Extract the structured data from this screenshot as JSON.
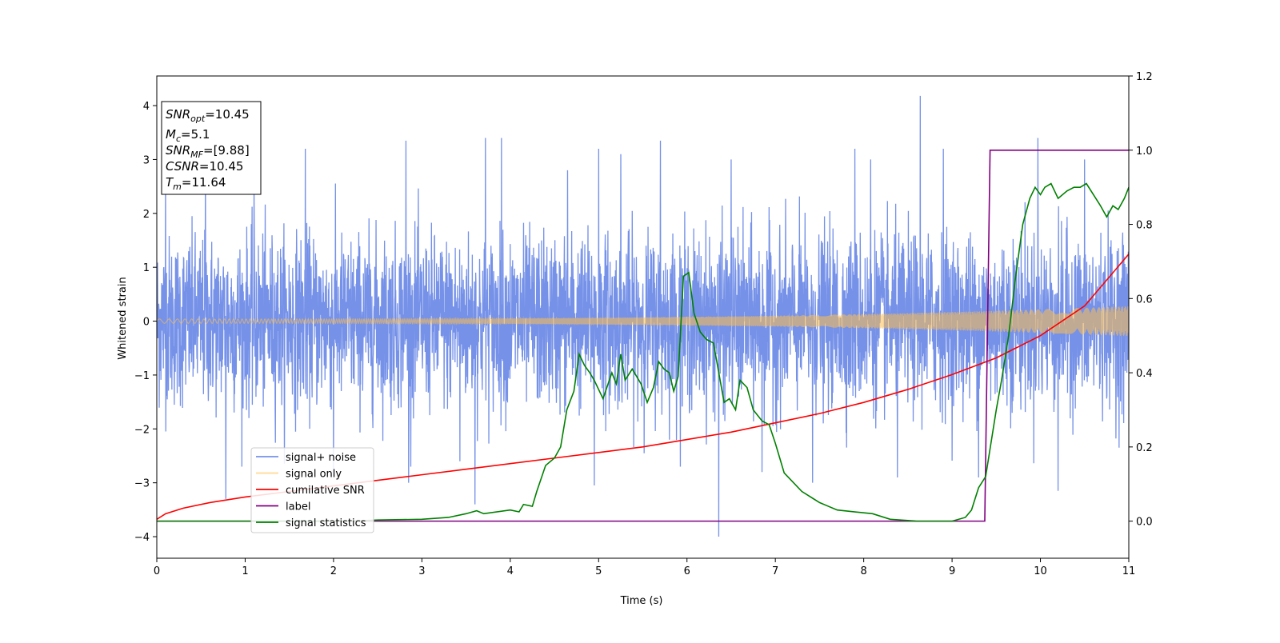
{
  "chart_data": {
    "type": "line",
    "xlabel": "Time (s)",
    "ylabel": "Whitened strain",
    "xlim": [
      0,
      11
    ],
    "ylim_left": [
      -4.4,
      4.55
    ],
    "ylim_right": [
      -0.1,
      1.2
    ],
    "x_ticks": [
      0,
      1,
      2,
      3,
      4,
      5,
      6,
      7,
      8,
      9,
      10,
      11
    ],
    "x_tick_labels": [
      "0",
      "1",
      "2",
      "3",
      "4",
      "5",
      "6",
      "7",
      "8",
      "9",
      "10",
      "11"
    ],
    "y_left_ticks": [
      -4,
      -3,
      -2,
      -1,
      0,
      1,
      2,
      3,
      4
    ],
    "y_left_tick_labels": [
      "−4",
      "−3",
      "−2",
      "−1",
      "0",
      "1",
      "2",
      "3",
      "4"
    ],
    "y_right_ticks": [
      0.0,
      0.2,
      0.4,
      0.6,
      0.8,
      1.0,
      1.2
    ],
    "y_right_tick_labels": [
      "0.0",
      "0.2",
      "0.4",
      "0.6",
      "0.8",
      "1.0",
      "1.2"
    ],
    "grid": false,
    "legend_position": "lower-left",
    "annotation": {
      "lines": [
        {
          "sym": "SNR",
          "sub": "opt",
          "val": "=10.45"
        },
        {
          "sym": "M",
          "sub": "c",
          "val": "=5.1"
        },
        {
          "sym": "SNR",
          "sub": "MF",
          "val": "=[9.88]"
        },
        {
          "sym": "CSNR",
          "sub": "",
          "val": "=10.45"
        },
        {
          "sym": "T",
          "sub": "m",
          "val": "=11.64"
        }
      ]
    },
    "series": [
      {
        "name": "signal+ noise",
        "color": "#7591e8",
        "axis": "left",
        "envelope_typical": 1.5,
        "spikes": [
          {
            "x": 0.1,
            "y": 3.05
          },
          {
            "x": 0.55,
            "y": 3.0
          },
          {
            "x": 0.78,
            "y": -3.3
          },
          {
            "x": 1.1,
            "y": 2.6
          },
          {
            "x": 1.68,
            "y": 3.2
          },
          {
            "x": 2.0,
            "y": -2.9
          },
          {
            "x": 2.82,
            "y": 3.35
          },
          {
            "x": 2.85,
            "y": -3.0
          },
          {
            "x": 3.43,
            "y": -2.6
          },
          {
            "x": 3.6,
            "y": -3.4
          },
          {
            "x": 3.72,
            "y": 3.4
          },
          {
            "x": 3.9,
            "y": 3.4
          },
          {
            "x": 4.65,
            "y": 2.8
          },
          {
            "x": 4.95,
            "y": -3.05
          },
          {
            "x": 5.0,
            "y": 3.2
          },
          {
            "x": 5.25,
            "y": 3.1
          },
          {
            "x": 5.7,
            "y": 3.35
          },
          {
            "x": 6.36,
            "y": -4.0
          },
          {
            "x": 6.5,
            "y": 3.0
          },
          {
            "x": 6.85,
            "y": -2.8
          },
          {
            "x": 7.42,
            "y": -3.0
          },
          {
            "x": 7.9,
            "y": 3.2
          },
          {
            "x": 8.08,
            "y": 3.0
          },
          {
            "x": 8.38,
            "y": -2.9
          },
          {
            "x": 8.64,
            "y": 4.18
          },
          {
            "x": 8.9,
            "y": 3.2
          },
          {
            "x": 9.3,
            "y": -2.9
          },
          {
            "x": 9.97,
            "y": 3.4
          },
          {
            "x": 10.2,
            "y": -3.15
          },
          {
            "x": 10.5,
            "y": 3.0
          }
        ]
      },
      {
        "name": "signal only",
        "color": "#ffc04d",
        "axis": "left",
        "amplitude_start": 0.04,
        "amplitude_end": 0.28
      },
      {
        "name": "cumilative SNR",
        "color": "#ff0000",
        "axis": "right",
        "points": [
          [
            0,
            0.005
          ],
          [
            0.1,
            0.02
          ],
          [
            0.3,
            0.035
          ],
          [
            0.6,
            0.05
          ],
          [
            1,
            0.065
          ],
          [
            1.5,
            0.08
          ],
          [
            2,
            0.095
          ],
          [
            2.5,
            0.11
          ],
          [
            3,
            0.125
          ],
          [
            3.5,
            0.14
          ],
          [
            4,
            0.155
          ],
          [
            4.5,
            0.17
          ],
          [
            5,
            0.185
          ],
          [
            5.5,
            0.2
          ],
          [
            6,
            0.22
          ],
          [
            6.5,
            0.24
          ],
          [
            7,
            0.265
          ],
          [
            7.5,
            0.29
          ],
          [
            8,
            0.32
          ],
          [
            8.5,
            0.355
          ],
          [
            9,
            0.395
          ],
          [
            9.5,
            0.44
          ],
          [
            10,
            0.5
          ],
          [
            10.5,
            0.58
          ],
          [
            11,
            0.72
          ]
        ]
      },
      {
        "name": "label",
        "color": "#800080",
        "axis": "right",
        "points": [
          [
            0,
            0.0
          ],
          [
            9.37,
            0.0
          ],
          [
            9.43,
            1.0
          ],
          [
            11,
            1.0
          ]
        ]
      },
      {
        "name": "signal statistics",
        "color": "#008000",
        "axis": "right",
        "points": [
          [
            0,
            0.0
          ],
          [
            2.2,
            0.0
          ],
          [
            2.5,
            0.003
          ],
          [
            3.0,
            0.005
          ],
          [
            3.3,
            0.01
          ],
          [
            3.5,
            0.02
          ],
          [
            3.62,
            0.028
          ],
          [
            3.7,
            0.02
          ],
          [
            4.0,
            0.03
          ],
          [
            4.1,
            0.025
          ],
          [
            4.15,
            0.045
          ],
          [
            4.25,
            0.04
          ],
          [
            4.3,
            0.08
          ],
          [
            4.4,
            0.15
          ],
          [
            4.5,
            0.17
          ],
          [
            4.57,
            0.2
          ],
          [
            4.64,
            0.3
          ],
          [
            4.72,
            0.35
          ],
          [
            4.78,
            0.45
          ],
          [
            4.84,
            0.42
          ],
          [
            4.9,
            0.4
          ],
          [
            4.95,
            0.38
          ],
          [
            5.05,
            0.33
          ],
          [
            5.15,
            0.4
          ],
          [
            5.2,
            0.37
          ],
          [
            5.25,
            0.45
          ],
          [
            5.3,
            0.38
          ],
          [
            5.38,
            0.41
          ],
          [
            5.48,
            0.37
          ],
          [
            5.55,
            0.32
          ],
          [
            5.62,
            0.36
          ],
          [
            5.68,
            0.43
          ],
          [
            5.74,
            0.41
          ],
          [
            5.8,
            0.4
          ],
          [
            5.85,
            0.35
          ],
          [
            5.9,
            0.39
          ],
          [
            5.96,
            0.66
          ],
          [
            6.02,
            0.67
          ],
          [
            6.08,
            0.56
          ],
          [
            6.15,
            0.51
          ],
          [
            6.22,
            0.49
          ],
          [
            6.3,
            0.48
          ],
          [
            6.36,
            0.4
          ],
          [
            6.42,
            0.32
          ],
          [
            6.48,
            0.33
          ],
          [
            6.55,
            0.3
          ],
          [
            6.6,
            0.38
          ],
          [
            6.68,
            0.36
          ],
          [
            6.75,
            0.3
          ],
          [
            6.85,
            0.27
          ],
          [
            6.93,
            0.26
          ],
          [
            7.0,
            0.21
          ],
          [
            7.1,
            0.13
          ],
          [
            7.3,
            0.08
          ],
          [
            7.5,
            0.05
          ],
          [
            7.6,
            0.04
          ],
          [
            7.7,
            0.03
          ],
          [
            7.9,
            0.025
          ],
          [
            8.1,
            0.02
          ],
          [
            8.3,
            0.005
          ],
          [
            8.6,
            0.0
          ],
          [
            9.0,
            0.0
          ],
          [
            9.15,
            0.01
          ],
          [
            9.22,
            0.03
          ],
          [
            9.3,
            0.09
          ],
          [
            9.38,
            0.12
          ],
          [
            9.42,
            0.18
          ],
          [
            9.5,
            0.3
          ],
          [
            9.56,
            0.38
          ],
          [
            9.64,
            0.5
          ],
          [
            9.72,
            0.66
          ],
          [
            9.8,
            0.8
          ],
          [
            9.88,
            0.87
          ],
          [
            9.94,
            0.9
          ],
          [
            10.0,
            0.88
          ],
          [
            10.05,
            0.9
          ],
          [
            10.12,
            0.91
          ],
          [
            10.2,
            0.87
          ],
          [
            10.3,
            0.89
          ],
          [
            10.38,
            0.9
          ],
          [
            10.45,
            0.9
          ],
          [
            10.52,
            0.91
          ],
          [
            10.6,
            0.88
          ],
          [
            10.68,
            0.85
          ],
          [
            10.75,
            0.82
          ],
          [
            10.82,
            0.85
          ],
          [
            10.88,
            0.84
          ],
          [
            10.95,
            0.87
          ],
          [
            11,
            0.9
          ]
        ]
      }
    ]
  }
}
